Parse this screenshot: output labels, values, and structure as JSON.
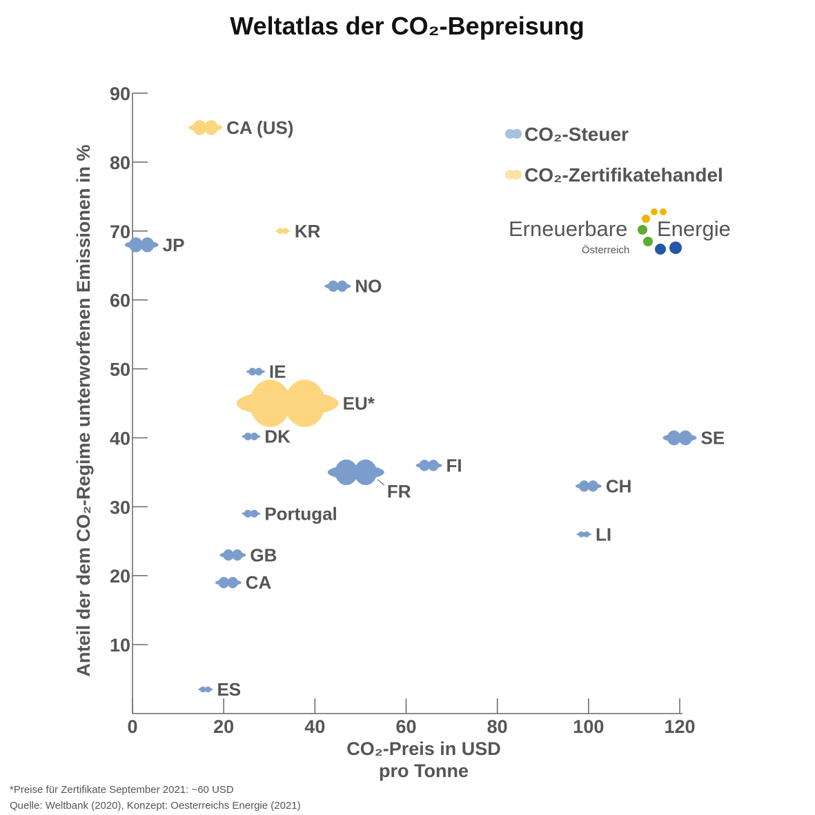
{
  "chart_data": {
    "type": "scatter",
    "title": "Weltatlas der CO₂-Bepreisung",
    "xlabel_line1": "CO₂-Preis in USD",
    "xlabel_line2": "pro Tonne",
    "ylabel": "Anteil der dem CO₂-Regime unterworfenen Emissionen in %",
    "xlim": [
      0,
      120
    ],
    "ylim": [
      0,
      90
    ],
    "xticks": [
      0,
      20,
      40,
      60,
      80,
      100,
      120
    ],
    "yticks": [
      10,
      20,
      30,
      40,
      50,
      60,
      70,
      80,
      90
    ],
    "series": [
      {
        "name": "CO₂-Steuer",
        "color": "#7b9dcc",
        "points": [
          {
            "label": "JP",
            "x": 2,
            "y": 68,
            "size": 3
          },
          {
            "label": "NO",
            "x": 45,
            "y": 62,
            "size": 2
          },
          {
            "label": "IE",
            "x": 27,
            "y": 49.6,
            "size": 1
          },
          {
            "label": "DK",
            "x": 26,
            "y": 40.2,
            "size": 1
          },
          {
            "label": "FR",
            "x": 49,
            "y": 35,
            "size": 6
          },
          {
            "label": "FI",
            "x": 65,
            "y": 36,
            "size": 2
          },
          {
            "label": "SE",
            "x": 120,
            "y": 40,
            "size": 3
          },
          {
            "label": "CH",
            "x": 100,
            "y": 33,
            "size": 2
          },
          {
            "label": "Portugal",
            "x": 26,
            "y": 29,
            "size": 1
          },
          {
            "label": "LI",
            "x": 99,
            "y": 26,
            "size": 0.5
          },
          {
            "label": "GB",
            "x": 22,
            "y": 23,
            "size": 2
          },
          {
            "label": "CA",
            "x": 21,
            "y": 19,
            "size": 2
          },
          {
            "label": "ES",
            "x": 16,
            "y": 3.5,
            "size": 0.5
          }
        ]
      },
      {
        "name": "CO₂-Zertifikatehandel",
        "color": "#fdd57e",
        "points": [
          {
            "label": "CA (US)",
            "x": 16,
            "y": 85,
            "size": 3
          },
          {
            "label": "KR",
            "x": 33,
            "y": 70,
            "size": 0.5
          },
          {
            "label": "EU*",
            "x": 34,
            "y": 45,
            "size": 12
          }
        ]
      }
    ]
  },
  "legend": {
    "tax_label": "CO₂-Steuer",
    "trading_label": "CO₂-Zertifikatehandel"
  },
  "logo": {
    "word1": "Erneuerbare",
    "word2": "Energie",
    "sub": "Österreich",
    "dot_colors": [
      "#f2b300",
      "#f2b300",
      "#f2b300",
      "#5cab33",
      "#5cab33",
      "#2457a8",
      "#2457a8"
    ]
  },
  "footnote": {
    "note": "*Preise für Zertifikate September 2021: ~60 USD",
    "source": "Quelle: Weltbank (2020), Konzept: Oesterreichs Energie (2021)"
  }
}
